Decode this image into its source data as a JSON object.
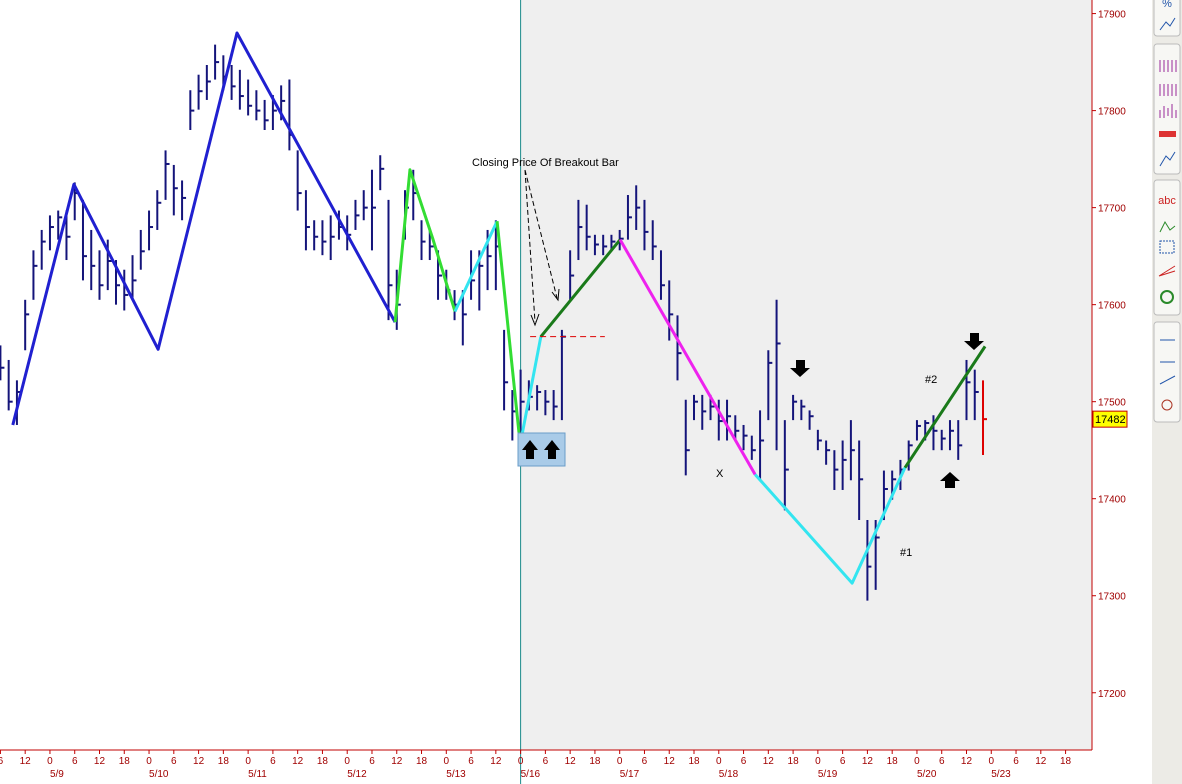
{
  "chart_data": {
    "type": "ohlc",
    "xlim": [
      -12.1,
      252.4
    ],
    "ylim": [
      17141,
      17914
    ],
    "y_axis_side": "right",
    "session_start": 114,
    "bar_color": "#14147a",
    "last_bar_color": "#dd0000",
    "yticks": [
      17200,
      17300,
      17400,
      17500,
      17600,
      17700,
      17800,
      17900
    ],
    "xticks": [
      {
        "value": -12,
        "label": "6"
      },
      {
        "value": -6,
        "label": "12"
      },
      {
        "value": 0,
        "label": "0"
      },
      {
        "value": 6,
        "label": "6"
      },
      {
        "value": 12,
        "label": "12"
      },
      {
        "value": 18,
        "label": "18"
      },
      {
        "value": 24,
        "label": "0"
      },
      {
        "value": 30,
        "label": "6"
      },
      {
        "value": 36,
        "label": "12"
      },
      {
        "value": 42,
        "label": "18"
      },
      {
        "value": 48,
        "label": "0"
      },
      {
        "value": 54,
        "label": "6"
      },
      {
        "value": 60,
        "label": "12"
      },
      {
        "value": 66,
        "label": "18"
      },
      {
        "value": 72,
        "label": "0"
      },
      {
        "value": 78,
        "label": "6"
      },
      {
        "value": 84,
        "label": "12"
      },
      {
        "value": 90,
        "label": "18"
      },
      {
        "value": 96,
        "label": "0"
      },
      {
        "value": 102,
        "label": "6"
      },
      {
        "value": 108,
        "label": "12"
      },
      {
        "value": 114,
        "label": "0"
      },
      {
        "value": 120,
        "label": "6"
      },
      {
        "value": 126,
        "label": "12"
      },
      {
        "value": 132,
        "label": "18"
      },
      {
        "value": 138,
        "label": "0"
      },
      {
        "value": 144,
        "label": "6"
      },
      {
        "value": 150,
        "label": "12"
      },
      {
        "value": 156,
        "label": "18"
      },
      {
        "value": 162,
        "label": "0"
      },
      {
        "value": 168,
        "label": "6"
      },
      {
        "value": 174,
        "label": "12"
      },
      {
        "value": 180,
        "label": "18"
      },
      {
        "value": 186,
        "label": "0"
      },
      {
        "value": 192,
        "label": "6"
      },
      {
        "value": 198,
        "label": "12"
      },
      {
        "value": 204,
        "label": "18"
      },
      {
        "value": 210,
        "label": "0"
      },
      {
        "value": 216,
        "label": "6"
      },
      {
        "value": 222,
        "label": "12"
      },
      {
        "value": 228,
        "label": "0"
      },
      {
        "value": 234,
        "label": "6"
      },
      {
        "value": 240,
        "label": "12"
      },
      {
        "value": 246,
        "label": "18"
      }
    ],
    "date_labels": [
      {
        "value": 0,
        "label": "5/9"
      },
      {
        "value": 24,
        "label": "5/10"
      },
      {
        "value": 48,
        "label": "5/11"
      },
      {
        "value": 72,
        "label": "5/12"
      },
      {
        "value": 96,
        "label": "5/13"
      },
      {
        "value": 114,
        "label": "5/16"
      },
      {
        "value": 138,
        "label": "5/17"
      },
      {
        "value": 162,
        "label": "5/18"
      },
      {
        "value": 186,
        "label": "5/19"
      },
      {
        "value": 210,
        "label": "5/20"
      },
      {
        "value": 228,
        "label": "5/23"
      }
    ],
    "x": [
      -12,
      -10,
      -8,
      -6,
      -4,
      -2,
      0,
      2,
      4,
      6,
      8,
      10,
      12,
      14,
      16,
      18,
      20,
      22,
      24,
      26,
      28,
      30,
      32,
      34,
      36,
      38,
      40,
      42,
      44,
      46,
      48,
      50,
      52,
      54,
      56,
      58,
      60,
      62,
      64,
      66,
      68,
      70,
      72,
      74,
      76,
      78,
      80,
      82,
      84,
      86,
      88,
      90,
      92,
      94,
      96,
      98,
      100,
      102,
      104,
      106,
      108,
      110,
      112,
      114,
      116,
      118,
      120,
      122,
      124,
      126,
      128,
      130,
      132,
      134,
      136,
      138,
      140,
      142,
      144,
      146,
      148,
      150,
      152,
      154,
      156,
      158,
      160,
      162,
      164,
      166,
      168,
      170,
      172,
      174,
      176,
      178,
      180,
      182,
      184,
      186,
      188,
      190,
      192,
      194,
      196,
      198,
      200,
      202,
      204,
      206,
      208,
      210,
      212,
      214,
      216,
      218,
      220,
      222,
      224,
      226
    ],
    "high": [
      17558,
      17543,
      17522,
      17605,
      17656,
      17677,
      17692,
      17697,
      17697,
      17726,
      17708,
      17677,
      17656,
      17667,
      17646,
      17636,
      17651,
      17677,
      17697,
      17718,
      17759,
      17744,
      17728,
      17821,
      17837,
      17847,
      17868,
      17857,
      17847,
      17842,
      17832,
      17821,
      17811,
      17816,
      17826,
      17832,
      17759,
      17718,
      17687,
      17687,
      17692,
      17697,
      17692,
      17708,
      17718,
      17739,
      17754,
      17708,
      17636,
      17718,
      17739,
      17687,
      17677,
      17656,
      17636,
      17615,
      17615,
      17656,
      17656,
      17677,
      17687,
      17574,
      17512,
      17533,
      17522,
      17517,
      17512,
      17512,
      17574,
      17656,
      17708,
      17703,
      17672,
      17672,
      17672,
      17677,
      17713,
      17723,
      17708,
      17687,
      17656,
      17625,
      17589,
      17502,
      17507,
      17507,
      17507,
      17502,
      17502,
      17486,
      17476,
      17465,
      17491,
      17553,
      17605,
      17481,
      17507,
      17502,
      17491,
      17471,
      17460,
      17450,
      17460,
      17481,
      17460,
      17378,
      17378,
      17429,
      17429,
      17440,
      17460,
      17481,
      17481,
      17486,
      17471,
      17481,
      17481,
      17543,
      17533,
      17522
    ],
    "low": [
      17522,
      17491,
      17476,
      17553,
      17605,
      17636,
      17656,
      17667,
      17646,
      17687,
      17625,
      17615,
      17605,
      17615,
      17600,
      17594,
      17605,
      17636,
      17656,
      17677,
      17708,
      17692,
      17687,
      17780,
      17801,
      17811,
      17832,
      17821,
      17811,
      17801,
      17795,
      17790,
      17780,
      17780,
      17790,
      17759,
      17697,
      17656,
      17656,
      17651,
      17646,
      17667,
      17656,
      17677,
      17687,
      17656,
      17718,
      17584,
      17574,
      17667,
      17687,
      17646,
      17646,
      17605,
      17605,
      17584,
      17558,
      17605,
      17594,
      17615,
      17615,
      17491,
      17460,
      17455,
      17491,
      17491,
      17486,
      17481,
      17481,
      17605,
      17646,
      17656,
      17651,
      17651,
      17656,
      17656,
      17667,
      17677,
      17656,
      17646,
      17605,
      17563,
      17522,
      17424,
      17481,
      17471,
      17481,
      17460,
      17460,
      17460,
      17450,
      17440,
      17419,
      17481,
      17450,
      17388,
      17481,
      17481,
      17471,
      17450,
      17435,
      17409,
      17409,
      17419,
      17378,
      17295,
      17306,
      17378,
      17399,
      17409,
      17429,
      17460,
      17460,
      17450,
      17450,
      17450,
      17440,
      17481,
      17481,
      17445
    ],
    "close": [
      17535,
      17500,
      17510,
      17590,
      17640,
      17665,
      17680,
      17690,
      17670,
      17715,
      17650,
      17640,
      17620,
      17645,
      17620,
      17610,
      17625,
      17655,
      17680,
      17705,
      17745,
      17720,
      17710,
      17800,
      17820,
      17830,
      17850,
      17835,
      17825,
      17815,
      17805,
      17800,
      17790,
      17800,
      17810,
      17775,
      17715,
      17680,
      17670,
      17665,
      17670,
      17680,
      17672,
      17692,
      17700,
      17700,
      17740,
      17620,
      17600,
      17700,
      17715,
      17665,
      17660,
      17630,
      17615,
      17600,
      17590,
      17625,
      17640,
      17650,
      17660,
      17520,
      17490,
      17500,
      17505,
      17510,
      17500,
      17495,
      17567,
      17630,
      17680,
      17670,
      17662,
      17660,
      17665,
      17668,
      17690,
      17700,
      17675,
      17660,
      17620,
      17590,
      17550,
      17450,
      17500,
      17490,
      17495,
      17480,
      17485,
      17470,
      17465,
      17450,
      17460,
      17540,
      17560,
      17430,
      17500,
      17495,
      17485,
      17460,
      17450,
      17430,
      17440,
      17450,
      17420,
      17330,
      17360,
      17410,
      17420,
      17430,
      17455,
      17475,
      17478,
      17470,
      17462,
      17470,
      17455,
      17520,
      17510,
      17482
    ],
    "lines": [
      {
        "color": "#2020d0",
        "x": [
          -9,
          5.8,
          26.2,
          45.3,
          83.6
        ],
        "values": [
          17476,
          17724,
          17554,
          17880,
          17582
        ]
      },
      {
        "color": "#33dd33",
        "x": [
          83.6,
          87.2,
          92.8,
          98.1
        ],
        "values": [
          17582,
          17739,
          17667,
          17593
        ]
      },
      {
        "color": "#33e5f0",
        "x": [
          98.1,
          108.3
        ],
        "values": [
          17593,
          17686
        ]
      },
      {
        "color": "#33dd33",
        "x": [
          108.3,
          113.9
        ],
        "values": [
          17686,
          17456
        ]
      },
      {
        "color": "#33e5f0",
        "x": [
          113.9,
          118.9
        ],
        "values": [
          17456,
          17567
        ]
      },
      {
        "color": "#1a7a1a",
        "x": [
          118.9,
          138.1
        ],
        "values": [
          17567,
          17667
        ]
      },
      {
        "color": "#ee22ee",
        "x": [
          138.1,
          170.8
        ],
        "values": [
          17667,
          17425
        ]
      },
      {
        "color": "#33e5f0",
        "x": [
          170.8,
          194.3,
          207.1
        ],
        "values": [
          17425,
          17313,
          17432
        ]
      },
      {
        "color": "#1a7a1a",
        "x": [
          207.1,
          226.5
        ],
        "values": [
          17432,
          17557
        ]
      }
    ],
    "level": {
      "value": 17567,
      "x": [
        116.3,
        134.4
      ],
      "color": "#dd0000"
    },
    "annotations": {
      "breakout": "Closing Price Of Breakout Bar",
      "x_mark": "X",
      "first": "#1",
      "second": "#2"
    }
  },
  "toolbar": [
    "%",
    "abc"
  ]
}
